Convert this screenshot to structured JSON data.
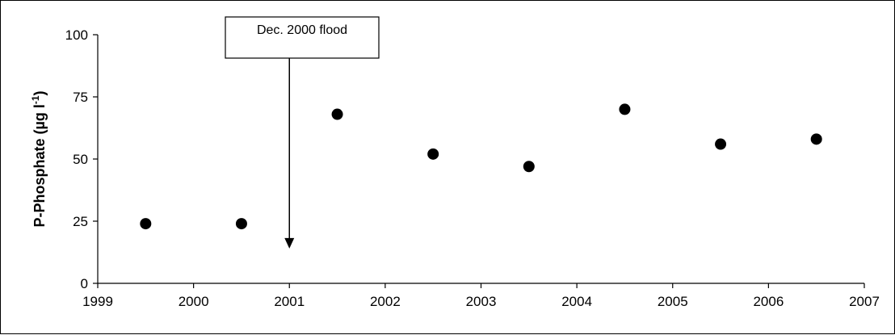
{
  "chart_data": {
    "type": "scatter",
    "title": "",
    "xlabel": "",
    "ylabel": "P-Phosphate  (µg l-1)",
    "ylabel_parts": {
      "main": "P-Phosphate  (µg l",
      "superscript": "-1",
      "close": ")"
    },
    "xlim": [
      1999,
      2007
    ],
    "ylim": [
      0,
      100
    ],
    "x_ticks": [
      "1999",
      "2000",
      "2001",
      "2002",
      "2003",
      "2004",
      "2005",
      "2006",
      "2007"
    ],
    "y_ticks": [
      "0",
      "25",
      "50",
      "75",
      "100"
    ],
    "grid": false,
    "legend": "none",
    "marker_color": "#000000",
    "series": [
      {
        "points": [
          {
            "x": 1999.5,
            "y": 24
          },
          {
            "x": 2000.5,
            "y": 24
          },
          {
            "x": 2001.5,
            "y": 68
          },
          {
            "x": 2002.5,
            "y": 52
          },
          {
            "x": 2003.5,
            "y": 47
          },
          {
            "x": 2004.5,
            "y": 70
          },
          {
            "x": 2005.5,
            "y": 56
          },
          {
            "x": 2006.5,
            "y": 58
          }
        ]
      }
    ],
    "annotations": [
      {
        "text": "Dec. 2000 flood",
        "x": 2001,
        "y_from": 100,
        "y_to": 14
      }
    ]
  }
}
